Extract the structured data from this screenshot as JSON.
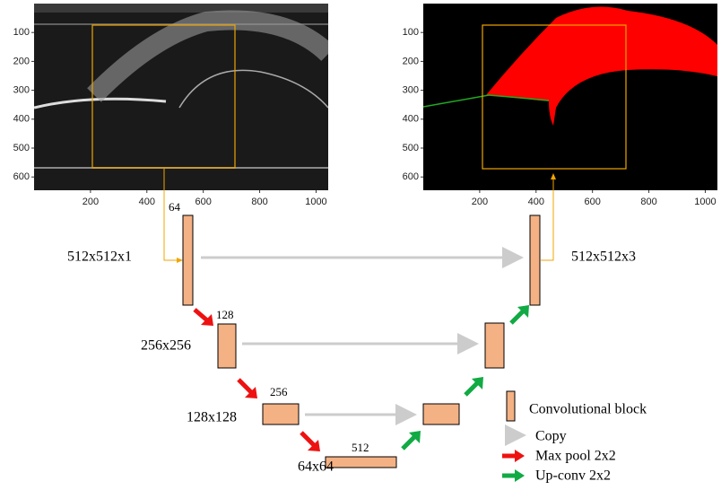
{
  "left_panel": {
    "yticks": [
      100,
      200,
      300,
      400,
      500,
      600
    ],
    "xticks": [
      200,
      400,
      600,
      800,
      1000
    ]
  },
  "right_panel": {
    "yticks": [
      100,
      200,
      300,
      400,
      500,
      600
    ],
    "xticks": [
      200,
      400,
      600,
      800,
      1000
    ]
  },
  "network": {
    "level1": {
      "channels": "64",
      "input_size": "512x512x1",
      "output_size": "512x512x3"
    },
    "level2": {
      "channels": "128",
      "size": "256x256"
    },
    "level3": {
      "channels": "256",
      "size": "128x128"
    },
    "level4": {
      "channels": "512",
      "size": "64x64"
    }
  },
  "legend": {
    "block": "Convolutional block",
    "copy": "Copy",
    "max_pool": "Max pool 2x2",
    "up_conv": "Up-conv 2x2"
  }
}
